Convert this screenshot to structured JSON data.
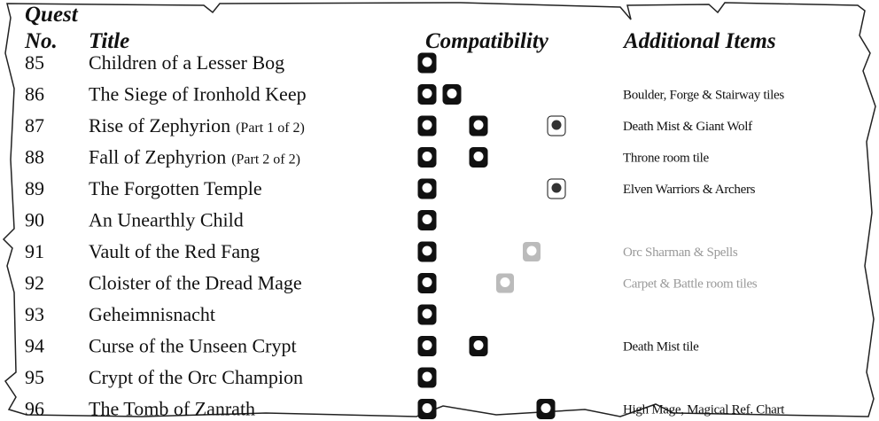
{
  "header": {
    "quest": "Quest",
    "no": "No.",
    "title": "Title",
    "compatibility": "Compatibility",
    "additional_items": "Additional Items"
  },
  "rows": [
    {
      "number": 85,
      "title": "Children of a Lesser Bog"
    },
    {
      "number": 86,
      "title": "The Siege of Ironhold Keep",
      "items": "Boulder, Forge & Stairway tiles"
    },
    {
      "number": 87,
      "title": "Rise of Zephyrion",
      "part": "(Part 1 of 2)",
      "items": "Death Mist & Giant Wolf"
    },
    {
      "number": 88,
      "title": "Fall of Zephyrion",
      "part": "(Part 2 of 2)",
      "items": "Throne room tile"
    },
    {
      "number": 89,
      "title": "The Forgotten Temple",
      "items": "Elven Warriors & Archers"
    },
    {
      "number": 90,
      "title": "An Unearthly Child"
    },
    {
      "number": 91,
      "title": "Vault of the Red Fang",
      "items": "Orc Sharman & Spells"
    },
    {
      "number": 92,
      "title": "Cloister of the Dread Mage",
      "items": "Carpet & Battle room tiles"
    },
    {
      "number": 93,
      "title": "Geheimnisnacht"
    },
    {
      "number": 94,
      "title": "Curse of the Unseen Crypt",
      "items": "Death Mist tile"
    },
    {
      "number": 95,
      "title": "Crypt of the Orc Champion"
    },
    {
      "number": 96,
      "title": "The Tomb of Zanrath",
      "items": "High Mage, Magical Ref. Chart"
    }
  ]
}
